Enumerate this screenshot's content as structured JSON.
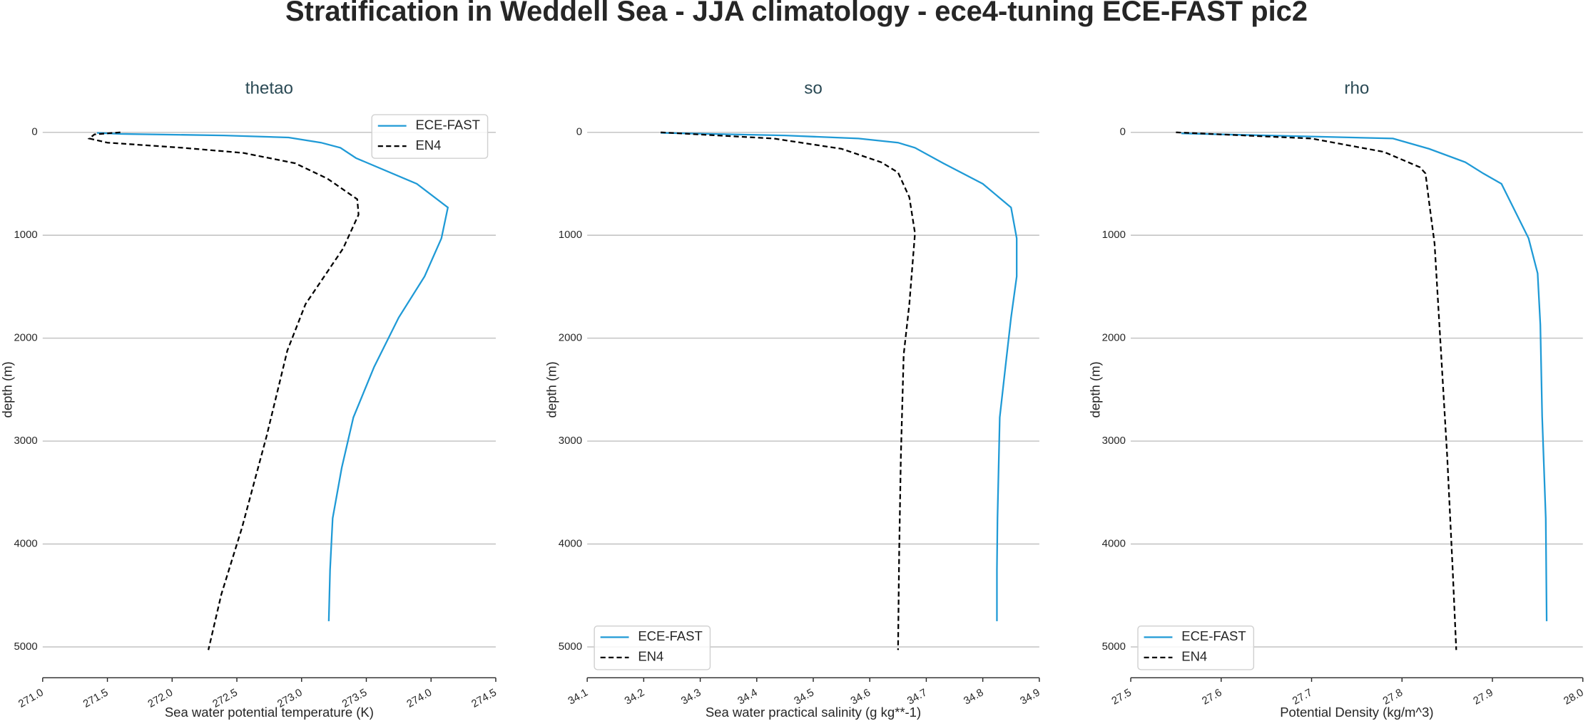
{
  "title": "Stratification in Weddell Sea - JJA climatology - ece4-tuning ECE-FAST pic2",
  "chart_data": [
    {
      "type": "line",
      "title": "thetao",
      "xlabel": "Sea water potential temperature (K)",
      "ylabel": "depth (m)",
      "xlim": [
        271.0,
        274.5
      ],
      "ylim": [
        5300,
        -300
      ],
      "xticks": [
        {
          "value": 271.0,
          "label": "271.0"
        },
        271.5,
        {
          "value": 272.0,
          "label": "272.0"
        },
        272.5,
        {
          "value": 273.0,
          "label": "273.0"
        },
        273.5,
        {
          "value": 274.0,
          "label": "274.0"
        },
        274.5
      ],
      "yticks": [
        0,
        1000,
        2000,
        3000,
        4000,
        5000
      ],
      "grid": true,
      "legend": "upper right",
      "series": [
        {
          "name": "ECE-FAST",
          "color": "#1f9ad6",
          "linestyle": "solid",
          "x": [
            271.42,
            271.6,
            272.4,
            272.9,
            273.15,
            273.3,
            273.42,
            273.89,
            274.13,
            274.08,
            273.95,
            273.75,
            273.56,
            273.4,
            273.31,
            273.24,
            273.22,
            273.21
          ],
          "y": [
            5,
            15,
            30,
            50,
            100,
            150,
            250,
            500,
            730,
            1030,
            1400,
            1800,
            2280,
            2770,
            3260,
            3750,
            4250,
            4750
          ]
        },
        {
          "name": "EN4",
          "color": "#000000",
          "linestyle": "dashed",
          "x": [
            271.6,
            271.4,
            271.36,
            271.5,
            272.08,
            272.55,
            272.95,
            273.2,
            273.43,
            273.44,
            273.32,
            273.03,
            272.89,
            272.73,
            272.54,
            272.38,
            272.28
          ],
          "y": [
            0,
            20,
            60,
            100,
            150,
            200,
            300,
            450,
            650,
            800,
            1130,
            1670,
            2120,
            2950,
            3840,
            4490,
            5030
          ]
        }
      ]
    },
    {
      "type": "line",
      "title": "so",
      "xlabel": "Sea water practical salinity (g kg**-1)",
      "ylabel": "depth (m)",
      "xlim": [
        34.1,
        34.9
      ],
      "ylim": [
        5300,
        -300
      ],
      "xticks": [
        34.1,
        34.2,
        34.3,
        34.4,
        34.5,
        34.6,
        34.7,
        34.8,
        34.9
      ],
      "yticks": [
        0,
        1000,
        2000,
        3000,
        4000,
        5000
      ],
      "grid": true,
      "legend": "lower left",
      "series": [
        {
          "name": "ECE-FAST",
          "color": "#1f9ad6",
          "linestyle": "solid",
          "x": [
            34.23,
            34.45,
            34.58,
            34.65,
            34.68,
            34.73,
            34.8,
            34.85,
            34.86,
            34.86,
            34.85,
            34.84,
            34.83,
            34.828,
            34.826,
            34.825,
            34.825
          ],
          "y": [
            5,
            30,
            60,
            100,
            150,
            300,
            500,
            730,
            1030,
            1400,
            1800,
            2280,
            2770,
            3260,
            3750,
            4250,
            4750
          ]
        },
        {
          "name": "EN4",
          "color": "#000000",
          "linestyle": "dashed",
          "x": [
            34.23,
            34.43,
            34.55,
            34.62,
            34.65,
            34.67,
            34.68,
            34.67,
            34.66,
            34.655,
            34.652,
            34.65
          ],
          "y": [
            0,
            60,
            160,
            290,
            390,
            630,
            980,
            1670,
            2160,
            3150,
            4090,
            5030
          ]
        }
      ]
    },
    {
      "type": "line",
      "title": "rho",
      "xlabel": "Potential Density (kg/m^3)",
      "ylabel": "depth (m)",
      "xlim": [
        27.5,
        28.0
      ],
      "ylim": [
        5300,
        -300
      ],
      "xticks": [
        27.5,
        27.6,
        27.7,
        27.8,
        27.9,
        {
          "value": 28.0,
          "label": "28.0"
        }
      ],
      "yticks": [
        0,
        1000,
        2000,
        3000,
        4000,
        5000
      ],
      "grid": true,
      "legend": "lower left",
      "series": [
        {
          "name": "ECE-FAST",
          "color": "#1f9ad6",
          "linestyle": "solid",
          "x": [
            27.556,
            27.79,
            27.83,
            27.87,
            27.89,
            27.91,
            27.94,
            27.95,
            27.953,
            27.955,
            27.959,
            27.96
          ],
          "y": [
            10,
            60,
            160,
            290,
            400,
            500,
            1030,
            1370,
            1870,
            2760,
            3750,
            4750
          ]
        },
        {
          "name": "EN4",
          "color": "#000000",
          "linestyle": "dashed",
          "x": [
            27.55,
            27.7,
            27.78,
            27.82,
            27.826,
            27.83,
            27.836,
            27.84,
            27.85,
            27.856,
            27.86
          ],
          "y": [
            0,
            60,
            190,
            340,
            400,
            680,
            1080,
            1670,
            3150,
            4240,
            5030
          ]
        }
      ]
    }
  ]
}
